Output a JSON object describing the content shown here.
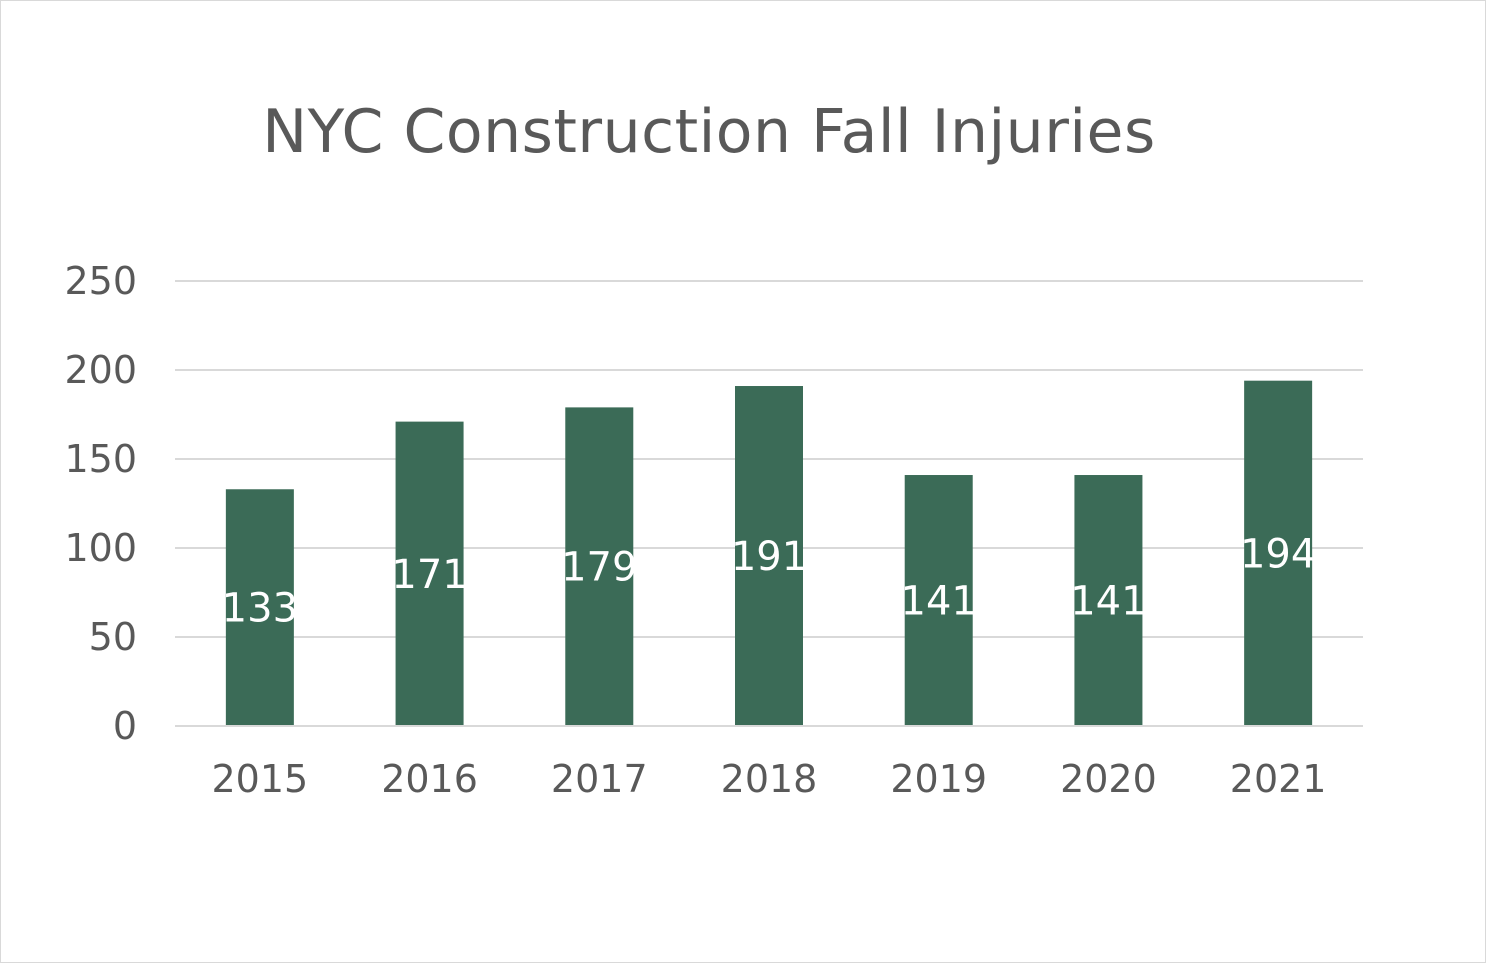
{
  "chart_data": {
    "type": "bar",
    "title": "NYC Construction Fall Injuries",
    "categories": [
      "2015",
      "2016",
      "2017",
      "2018",
      "2019",
      "2020",
      "2021"
    ],
    "values": [
      133,
      171,
      179,
      191,
      141,
      141,
      194
    ],
    "data_labels": [
      "133",
      "171",
      "179",
      "191",
      "141",
      "141",
      "194"
    ],
    "ylim": [
      0,
      250
    ],
    "y_ticks": [
      0,
      50,
      100,
      150,
      200,
      250
    ],
    "y_tick_labels": [
      "0",
      "50",
      "100",
      "150",
      "200",
      "250"
    ],
    "xlabel": "",
    "ylabel": "",
    "grid": true,
    "legend": "none",
    "bar_color": "#3b6b57",
    "grid_color": "#d9d9d9",
    "text_color": "#595959",
    "data_label_color": "#ffffff"
  }
}
